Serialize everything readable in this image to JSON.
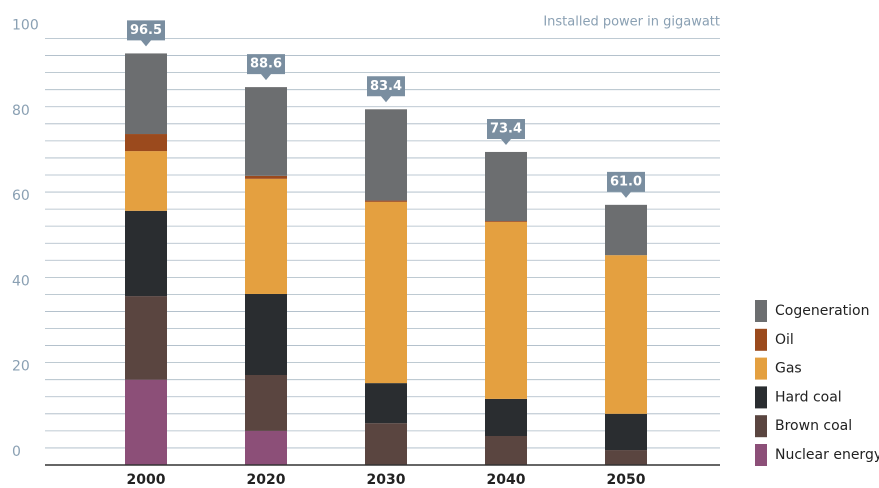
{
  "chart_data": {
    "type": "stacked_bar",
    "axis_label": "Installed power in gigawatt",
    "categories": [
      "2000",
      "2020",
      "2030",
      "2040",
      "2050"
    ],
    "series": [
      {
        "name": "Nuclear energy",
        "color": "#8c4f78",
        "values": [
          20,
          8,
          0,
          0,
          0
        ]
      },
      {
        "name": "Brown coal",
        "color": "#5a4540",
        "values": [
          19.6,
          13.1,
          9.8,
          6.8,
          3.5
        ]
      },
      {
        "name": "Hard coal",
        "color": "#2a2d30",
        "values": [
          20,
          19,
          9.4,
          8.7,
          8.5
        ]
      },
      {
        "name": "Gas",
        "color": "#e4a040",
        "values": [
          14,
          27,
          42.5,
          41.5,
          37.2
        ]
      },
      {
        "name": "Oil",
        "color": "#9b4a1d",
        "values": [
          4,
          0.7,
          0.3,
          0.2,
          0
        ]
      },
      {
        "name": "Cogeneration",
        "color": "#6c6e70",
        "values": [
          18.9,
          20.8,
          21.4,
          16.2,
          11.8
        ]
      }
    ],
    "totals": [
      96.5,
      88.6,
      83.4,
      73.4,
      61.0
    ],
    "total_labels": [
      "96.5",
      "88.6",
      "83.4",
      "73.4",
      "61.0"
    ],
    "ylim": [
      0,
      100
    ],
    "yticks": [
      0,
      20,
      40,
      60,
      80,
      100
    ],
    "grid_yticks": [
      0,
      4,
      8,
      12,
      16,
      20,
      24,
      28,
      32,
      36,
      40,
      44,
      48,
      52,
      56,
      60,
      64,
      68,
      72,
      76,
      80,
      84,
      88,
      92,
      96,
      100
    ],
    "legend": "right"
  }
}
